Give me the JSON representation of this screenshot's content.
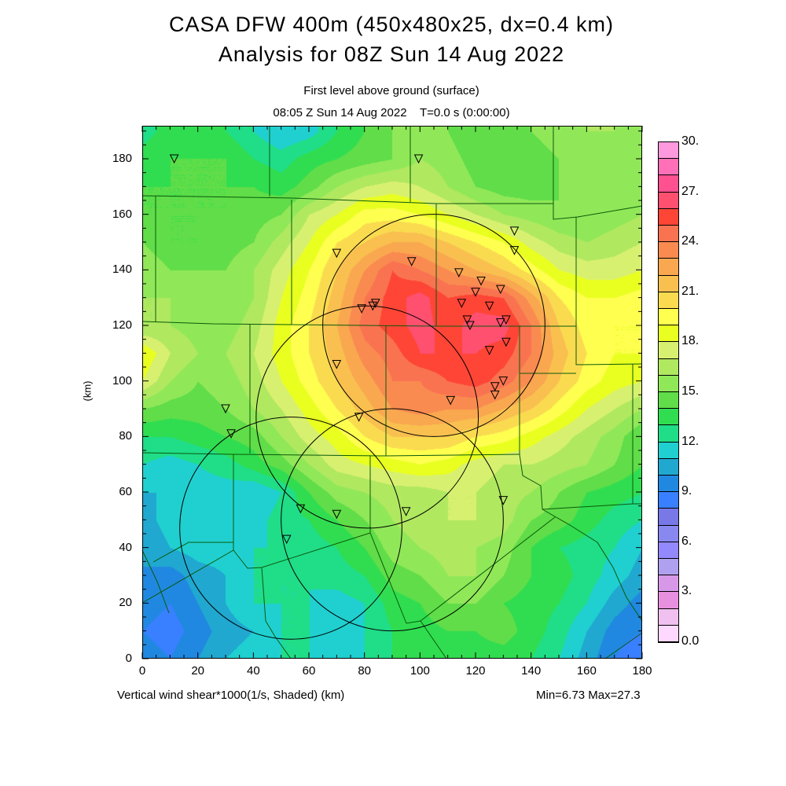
{
  "header": {
    "title": "CASA DFW 400m (450x480x25, dx=0.4 km)",
    "subtitle": "Analysis for 08Z Sun 14 Aug 2022",
    "level": "First level above ground (surface)",
    "time": "08:05 Z Sun 14 Aug 2022    T=0.0 s (0:00:00)"
  },
  "footer": {
    "caption": "Vertical wind shear*1000(1/s, Shaded)  (km)",
    "minmax": "Min=6.73 Max=27.3"
  },
  "chart_data": {
    "type": "heatmap",
    "title": "CASA DFW 400m (450x480x25, dx=0.4 km)",
    "xlabel": "(km)",
    "ylabel": "(km)",
    "xlim": [
      0,
      180
    ],
    "ylim": [
      0,
      192
    ],
    "x_ticks": [
      "0",
      "20",
      "40",
      "60",
      "80",
      "100",
      "120",
      "140",
      "160",
      "180"
    ],
    "y_ticks": [
      "0",
      "20",
      "40",
      "60",
      "80",
      "100",
      "120",
      "140",
      "160",
      "180"
    ],
    "grid_spacing_km": 10,
    "grid_x": [
      0,
      10,
      20,
      30,
      40,
      50,
      60,
      70,
      80,
      90,
      100,
      110,
      120,
      130,
      140,
      150,
      160,
      170,
      180
    ],
    "grid_y_top_to_bottom": [
      190,
      180,
      170,
      160,
      150,
      140,
      130,
      120,
      110,
      100,
      90,
      80,
      70,
      60,
      50,
      40,
      30,
      20,
      10,
      0
    ],
    "values": [
      [
        12.5,
        13.5,
        14,
        13,
        12,
        11,
        11.5,
        13,
        14,
        15,
        16,
        15,
        14,
        14,
        15,
        15.5,
        16,
        16,
        15
      ],
      [
        13.5,
        14,
        14,
        14,
        13,
        12.5,
        13.5,
        14,
        14.5,
        15,
        16,
        15.5,
        14.5,
        14,
        14.5,
        15,
        16,
        15.5,
        15
      ],
      [
        14,
        14,
        14,
        14,
        14,
        13.5,
        14.5,
        16,
        17,
        17.5,
        17,
        16,
        15,
        14.5,
        14.5,
        15,
        15.5,
        16,
        16
      ],
      [
        14,
        14,
        14,
        14,
        14.5,
        15,
        17,
        18,
        19.5,
        19.5,
        19,
        18,
        17,
        16,
        15.5,
        15,
        15,
        15.5,
        16
      ],
      [
        15,
        14,
        14,
        14.5,
        15,
        16.5,
        18,
        20,
        21,
        22,
        22,
        21,
        20,
        19,
        17.5,
        16.5,
        16,
        16.5,
        17
      ],
      [
        16,
        15,
        15,
        15,
        16,
        17.5,
        19,
        21,
        23,
        25,
        24,
        23,
        22,
        21,
        19.5,
        18,
        17.5,
        17.5,
        18
      ],
      [
        16,
        16,
        15.5,
        15,
        16,
        18,
        19.5,
        21.5,
        24,
        25.5,
        26.5,
        25,
        25.5,
        25,
        22.5,
        20,
        19,
        19,
        19.5
      ],
      [
        16,
        16,
        15.5,
        15.5,
        16.5,
        18.5,
        20,
        22,
        24.5,
        25.5,
        26.5,
        25.5,
        26.5,
        26.5,
        24,
        21,
        19.5,
        19,
        19
      ],
      [
        19,
        17,
        16,
        16,
        17,
        18.5,
        20,
        21.5,
        23.5,
        24.5,
        26,
        26,
        26,
        25.5,
        24,
        21.5,
        20,
        19,
        19
      ],
      [
        18,
        16,
        15,
        15.5,
        16.5,
        18,
        19.5,
        21,
        22.5,
        24,
        24,
        25,
        25.5,
        24.5,
        23,
        21,
        19.5,
        18.5,
        18
      ],
      [
        15,
        14.5,
        14.5,
        15,
        16,
        17,
        18.5,
        20,
        21.5,
        23,
        23.5,
        23,
        23,
        22,
        21,
        19.5,
        18,
        17,
        16
      ],
      [
        13,
        13,
        13.5,
        14,
        14.5,
        16,
        17.5,
        18.5,
        20,
        21,
        21,
        21,
        20,
        19.5,
        18.5,
        17.5,
        16.5,
        15.5,
        14
      ],
      [
        12,
        11.5,
        12,
        12.5,
        13.5,
        14.5,
        16,
        17.5,
        18,
        18.5,
        19,
        18.5,
        17.5,
        17,
        17,
        16.5,
        16,
        15,
        14
      ],
      [
        11,
        11,
        11.5,
        11.5,
        11,
        12,
        14,
        15.5,
        16,
        16.5,
        16.5,
        17,
        17,
        16.5,
        16,
        15,
        14,
        13.5,
        13
      ],
      [
        10.5,
        11.5,
        12,
        12,
        11.5,
        12.5,
        13,
        14,
        15,
        16,
        16.5,
        17,
        17,
        16.5,
        15,
        14.5,
        13.5,
        12.5,
        12
      ],
      [
        10,
        11,
        11.5,
        11.5,
        12,
        12,
        12.5,
        13,
        14,
        15.5,
        16,
        16.5,
        16,
        15.5,
        14,
        13,
        12.5,
        12,
        11
      ],
      [
        10,
        9.5,
        10.5,
        11,
        12,
        12,
        12,
        12.5,
        13,
        14.5,
        15,
        16,
        16,
        15,
        14,
        13.5,
        12.5,
        11.5,
        10.5
      ],
      [
        9.5,
        9,
        10,
        11,
        12,
        12,
        12,
        11.5,
        12,
        13.5,
        14,
        15,
        15,
        14,
        13.5,
        13,
        12,
        10.5,
        9.5
      ],
      [
        9,
        8.5,
        9.5,
        10.5,
        11,
        12,
        12,
        11,
        12,
        13,
        13.5,
        14,
        14,
        14.5,
        13.5,
        12.5,
        11,
        9.5,
        9
      ],
      [
        9.5,
        9,
        10,
        11,
        11.5,
        12,
        12,
        11.5,
        12,
        13,
        13,
        13.5,
        13.5,
        13.5,
        13,
        12,
        10.5,
        9,
        8
      ]
    ],
    "colorbar": {
      "min": 0,
      "max": 30,
      "step": 1,
      "labels": [
        "0.0",
        "3.",
        "6.",
        "9.",
        "12.",
        "15.",
        "18.",
        "21.",
        "24.",
        "27.",
        "30."
      ],
      "colors_low_to_high": [
        "#ffd8ff",
        "#f0c0f0",
        "#e890e0",
        "#d898e8",
        "#b0a0f0",
        "#9488ff",
        "#8888f0",
        "#7878e8",
        "#3880ff",
        "#2088e0",
        "#20a8d0",
        "#20d0d0",
        "#20dd88",
        "#30dd50",
        "#60dd48",
        "#90e858",
        "#b0e860",
        "#d8f070",
        "#e8ff20",
        "#ffff50",
        "#fadb50",
        "#f9c050",
        "#f9a850",
        "#f98b50",
        "#f97350",
        "#ff4536",
        "#ff5070",
        "#ff5090",
        "#ff70b8",
        "#ff99dd"
      ]
    },
    "radar_rings_km": [
      {
        "cx": 105,
        "cy": 120,
        "r": 40
      },
      {
        "cx": 81,
        "cy": 87,
        "r": 40
      },
      {
        "cx": 90,
        "cy": 50,
        "r": 40
      },
      {
        "cx": 53.5,
        "cy": 47,
        "r": 40
      }
    ],
    "stations_km": [
      [
        11.5,
        180
      ],
      [
        99.5,
        180
      ],
      [
        70,
        146
      ],
      [
        134,
        154
      ],
      [
        134,
        147
      ],
      [
        97,
        143
      ],
      [
        114,
        139
      ],
      [
        122,
        136
      ],
      [
        120,
        132
      ],
      [
        129,
        133
      ],
      [
        115,
        128
      ],
      [
        125,
        127
      ],
      [
        84,
        128
      ],
      [
        83,
        127
      ],
      [
        79,
        126
      ],
      [
        117,
        122
      ],
      [
        131,
        122
      ],
      [
        129,
        121
      ],
      [
        118,
        120
      ],
      [
        131,
        114
      ],
      [
        125,
        111
      ],
      [
        70,
        106
      ],
      [
        127,
        98
      ],
      [
        130,
        100
      ],
      [
        127,
        95
      ],
      [
        111,
        93
      ],
      [
        30,
        90
      ],
      [
        32,
        81
      ],
      [
        78,
        87
      ],
      [
        130,
        57
      ],
      [
        95,
        53
      ],
      [
        57,
        54
      ],
      [
        70,
        52
      ],
      [
        52,
        43
      ]
    ]
  }
}
